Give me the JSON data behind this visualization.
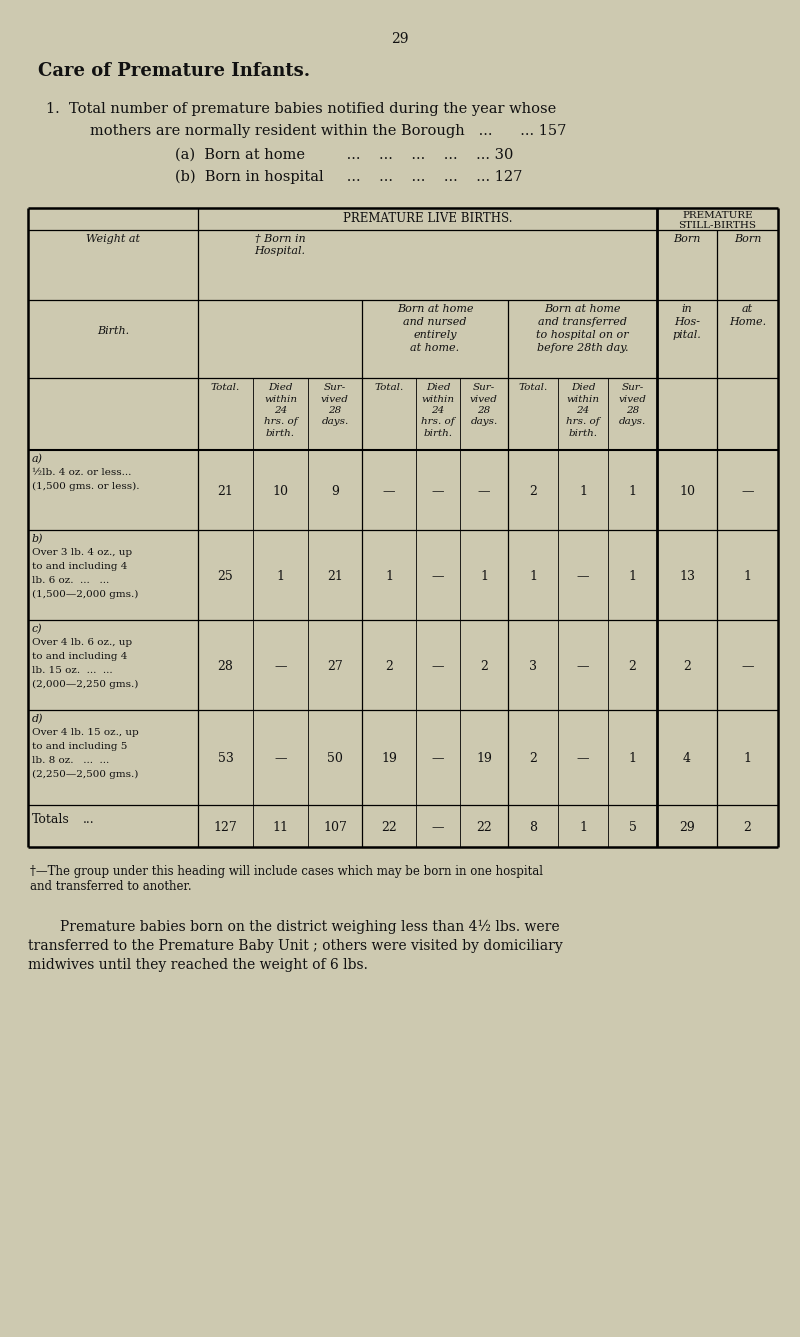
{
  "bg_color": "#cdc9b0",
  "page_number": "29",
  "title": "Care of Premature Infants.",
  "data_rows": [
    [
      "21",
      "10",
      "9",
      "—",
      "—",
      "—",
      "2",
      "1",
      "1",
      "10",
      "—"
    ],
    [
      "25",
      "1",
      "21",
      "1",
      "—",
      "1",
      "1",
      "—",
      "1",
      "13",
      "1"
    ],
    [
      "28",
      "—",
      "27",
      "2",
      "—",
      "2",
      "3",
      "—",
      "2",
      "2",
      "—"
    ],
    [
      "53",
      "—",
      "50",
      "19",
      "—",
      "19",
      "2",
      "—",
      "1",
      "4",
      "1"
    ]
  ],
  "totals_row": [
    "127",
    "11",
    "107",
    "22",
    "—",
    "22",
    "8",
    "1",
    "5",
    "29",
    "2"
  ]
}
